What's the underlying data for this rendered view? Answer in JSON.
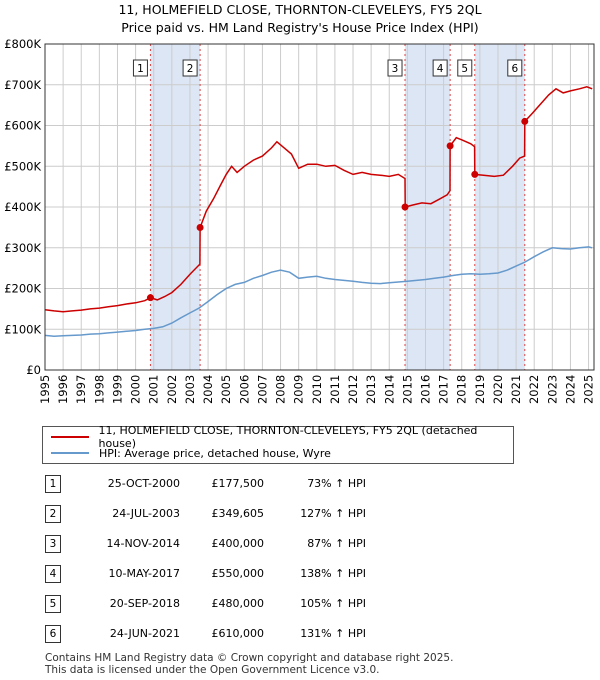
{
  "chart_data": {
    "type": "line",
    "title": "11, HOLMEFIELD CLOSE, THORNTON-CLEVELEYS, FY5 2QL",
    "subtitle": "Price paid vs. HM Land Registry's House Price Index (HPI)",
    "xlim": [
      1995,
      2025.3
    ],
    "ylim": [
      0,
      800000
    ],
    "x_ticks": [
      1995,
      1996,
      1997,
      1998,
      1999,
      2000,
      2001,
      2002,
      2003,
      2004,
      2005,
      2006,
      2007,
      2008,
      2009,
      2010,
      2011,
      2012,
      2013,
      2014,
      2015,
      2016,
      2017,
      2018,
      2019,
      2020,
      2021,
      2022,
      2023,
      2024,
      2025
    ],
    "y_ticks": [
      {
        "value": 0,
        "label": "£0"
      },
      {
        "value": 100000,
        "label": "£100K"
      },
      {
        "value": 200000,
        "label": "£200K"
      },
      {
        "value": 300000,
        "label": "£300K"
      },
      {
        "value": 400000,
        "label": "£400K"
      },
      {
        "value": 500000,
        "label": "£500K"
      },
      {
        "value": 600000,
        "label": "£600K"
      },
      {
        "value": 700000,
        "label": "£700K"
      },
      {
        "value": 800000,
        "label": "£800K"
      }
    ],
    "series": [
      {
        "name": "11, HOLMEFIELD CLOSE, THORNTON-CLEVELEYS, FY5 2QL (detached house)",
        "color": "#cc0000",
        "points": [
          [
            1995,
            148000
          ],
          [
            1995.5,
            145000
          ],
          [
            1996,
            143000
          ],
          [
            1996.5,
            145000
          ],
          [
            1997,
            147000
          ],
          [
            1997.5,
            150000
          ],
          [
            1998,
            152000
          ],
          [
            1998.5,
            155000
          ],
          [
            1999,
            158000
          ],
          [
            1999.5,
            162000
          ],
          [
            2000,
            165000
          ],
          [
            2000.5,
            170000
          ],
          [
            2000.82,
            177500
          ],
          [
            2001.2,
            172000
          ],
          [
            2001.6,
            180000
          ],
          [
            2002,
            190000
          ],
          [
            2002.5,
            210000
          ],
          [
            2003,
            235000
          ],
          [
            2003.55,
            260000
          ],
          [
            2003.56,
            349605
          ],
          [
            2003.9,
            390000
          ],
          [
            2004.3,
            420000
          ],
          [
            2004.7,
            455000
          ],
          [
            2005,
            480000
          ],
          [
            2005.3,
            500000
          ],
          [
            2005.6,
            485000
          ],
          [
            2006,
            500000
          ],
          [
            2006.5,
            515000
          ],
          [
            2007,
            525000
          ],
          [
            2007.5,
            545000
          ],
          [
            2007.8,
            560000
          ],
          [
            2008.2,
            545000
          ],
          [
            2008.6,
            530000
          ],
          [
            2009,
            495000
          ],
          [
            2009.5,
            505000
          ],
          [
            2010,
            505000
          ],
          [
            2010.5,
            500000
          ],
          [
            2011,
            502000
          ],
          [
            2011.5,
            490000
          ],
          [
            2012,
            480000
          ],
          [
            2012.5,
            485000
          ],
          [
            2013,
            480000
          ],
          [
            2013.5,
            478000
          ],
          [
            2014,
            475000
          ],
          [
            2014.5,
            480000
          ],
          [
            2014.87,
            470000
          ],
          [
            2014.88,
            400000
          ],
          [
            2015.3,
            405000
          ],
          [
            2015.8,
            410000
          ],
          [
            2016.3,
            408000
          ],
          [
            2016.8,
            420000
          ],
          [
            2017.2,
            430000
          ],
          [
            2017.35,
            440000
          ],
          [
            2017.36,
            550000
          ],
          [
            2017.7,
            570000
          ],
          [
            2018,
            565000
          ],
          [
            2018.5,
            555000
          ],
          [
            2018.71,
            548000
          ],
          [
            2018.72,
            480000
          ],
          [
            2019.2,
            478000
          ],
          [
            2019.8,
            475000
          ],
          [
            2020.3,
            478000
          ],
          [
            2020.8,
            500000
          ],
          [
            2021.2,
            520000
          ],
          [
            2021.47,
            525000
          ],
          [
            2021.48,
            610000
          ],
          [
            2021.9,
            630000
          ],
          [
            2022.3,
            650000
          ],
          [
            2022.8,
            675000
          ],
          [
            2023.2,
            690000
          ],
          [
            2023.6,
            680000
          ],
          [
            2024,
            685000
          ],
          [
            2024.5,
            690000
          ],
          [
            2024.9,
            695000
          ],
          [
            2025.2,
            690000
          ]
        ]
      },
      {
        "name": "HPI: Average price, detached house, Wyre",
        "color": "#6699cc",
        "points": [
          [
            1995,
            85000
          ],
          [
            1995.5,
            83000
          ],
          [
            1996,
            84000
          ],
          [
            1996.5,
            85000
          ],
          [
            1997,
            86000
          ],
          [
            1997.5,
            88000
          ],
          [
            1998,
            89000
          ],
          [
            1998.5,
            91000
          ],
          [
            1999,
            93000
          ],
          [
            1999.5,
            95000
          ],
          [
            2000,
            97000
          ],
          [
            2000.5,
            100000
          ],
          [
            2001,
            102000
          ],
          [
            2001.5,
            106000
          ],
          [
            2002,
            115000
          ],
          [
            2002.5,
            128000
          ],
          [
            2003,
            140000
          ],
          [
            2003.5,
            152000
          ],
          [
            2004,
            168000
          ],
          [
            2004.5,
            185000
          ],
          [
            2005,
            200000
          ],
          [
            2005.5,
            210000
          ],
          [
            2006,
            215000
          ],
          [
            2006.5,
            225000
          ],
          [
            2007,
            232000
          ],
          [
            2007.5,
            240000
          ],
          [
            2008,
            245000
          ],
          [
            2008.5,
            240000
          ],
          [
            2009,
            225000
          ],
          [
            2009.5,
            228000
          ],
          [
            2010,
            230000
          ],
          [
            2010.5,
            225000
          ],
          [
            2011,
            222000
          ],
          [
            2011.5,
            220000
          ],
          [
            2012,
            218000
          ],
          [
            2012.5,
            215000
          ],
          [
            2013,
            213000
          ],
          [
            2013.5,
            212000
          ],
          [
            2014,
            214000
          ],
          [
            2014.5,
            216000
          ],
          [
            2015,
            218000
          ],
          [
            2015.5,
            220000
          ],
          [
            2016,
            222000
          ],
          [
            2016.5,
            225000
          ],
          [
            2017,
            228000
          ],
          [
            2017.5,
            232000
          ],
          [
            2018,
            235000
          ],
          [
            2018.5,
            236000
          ],
          [
            2019,
            235000
          ],
          [
            2019.5,
            236000
          ],
          [
            2020,
            238000
          ],
          [
            2020.5,
            245000
          ],
          [
            2021,
            255000
          ],
          [
            2021.5,
            265000
          ],
          [
            2022,
            278000
          ],
          [
            2022.5,
            290000
          ],
          [
            2023,
            300000
          ],
          [
            2023.5,
            298000
          ],
          [
            2024,
            297000
          ],
          [
            2024.5,
            300000
          ],
          [
            2025,
            302000
          ],
          [
            2025.2,
            300000
          ]
        ]
      }
    ],
    "sales": [
      {
        "label": "1",
        "x": 2000.82,
        "price": 177500
      },
      {
        "label": "2",
        "x": 2003.56,
        "price": 349605
      },
      {
        "label": "3",
        "x": 2014.87,
        "price": 400000
      },
      {
        "label": "4",
        "x": 2017.36,
        "price": 550000
      },
      {
        "label": "5",
        "x": 2018.72,
        "price": 480000
      },
      {
        "label": "6",
        "x": 2021.48,
        "price": 610000
      }
    ],
    "shaded_ranges": [
      [
        2000.82,
        2003.56
      ],
      [
        2014.87,
        2017.36
      ],
      [
        2018.72,
        2021.48
      ]
    ],
    "colors": {
      "price": "#cc0000",
      "hpi": "#6699cc",
      "shade": "#dde6f5",
      "grid": "#cccccc",
      "marker_line": "#dd4444"
    }
  },
  "legend": {
    "price_label": "11, HOLMEFIELD CLOSE, THORNTON-CLEVELEYS, FY5 2QL (detached house)",
    "hpi_label": "HPI: Average price, detached house, Wyre"
  },
  "transactions": [
    {
      "num": "1",
      "date": "25-OCT-2000",
      "price": "£177,500",
      "hpi": "73% ↑ HPI"
    },
    {
      "num": "2",
      "date": "24-JUL-2003",
      "price": "£349,605",
      "hpi": "127% ↑ HPI"
    },
    {
      "num": "3",
      "date": "14-NOV-2014",
      "price": "£400,000",
      "hpi": "87% ↑ HPI"
    },
    {
      "num": "4",
      "date": "10-MAY-2017",
      "price": "£550,000",
      "hpi": "138% ↑ HPI"
    },
    {
      "num": "5",
      "date": "20-SEP-2018",
      "price": "£480,000",
      "hpi": "105% ↑ HPI"
    },
    {
      "num": "6",
      "date": "24-JUN-2021",
      "price": "£610,000",
      "hpi": "131% ↑ HPI"
    }
  ],
  "footer": {
    "line1": "Contains HM Land Registry data © Crown copyright and database right 2025.",
    "line2": "This data is licensed under the Open Government Licence v3.0."
  }
}
